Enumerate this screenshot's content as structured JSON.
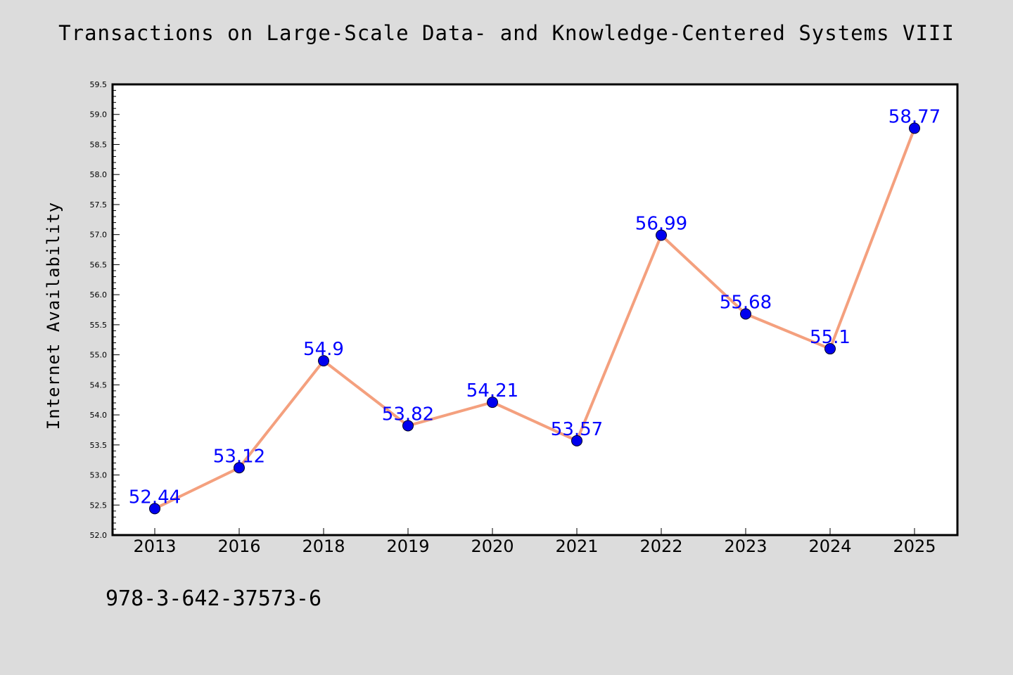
{
  "chart_data": {
    "type": "line",
    "title": "Transactions on Large-Scale Data- and Knowledge-Centered Systems VIII",
    "xlabel": "",
    "ylabel": "Internet Availability",
    "categories": [
      "2013",
      "2016",
      "2018",
      "2019",
      "2020",
      "2021",
      "2022",
      "2023",
      "2024",
      "2025"
    ],
    "values": [
      52.44,
      53.12,
      54.9,
      53.82,
      54.21,
      53.57,
      56.99,
      55.68,
      55.1,
      58.77
    ],
    "data_labels": [
      "52.44",
      "53.12",
      "54.9",
      "53.82",
      "54.21",
      "53.57",
      "56.99",
      "55.68",
      "55.1",
      "58.77"
    ],
    "ylim": [
      52.0,
      59.5
    ],
    "yticks": [
      "52.0",
      "52.5",
      "53.0",
      "53.5",
      "54.0",
      "54.5",
      "55.0",
      "55.5",
      "56.0",
      "56.5",
      "57.0",
      "57.5",
      "58.0",
      "58.5",
      "59.0",
      "59.5"
    ],
    "grid": false,
    "colors": {
      "line": "#f4a07e",
      "marker": "#0000ee",
      "label": "#0000ff",
      "background": "#dcdcdc",
      "plot_area": "#ffffff"
    }
  },
  "footnote": "978-3-642-37573-6"
}
